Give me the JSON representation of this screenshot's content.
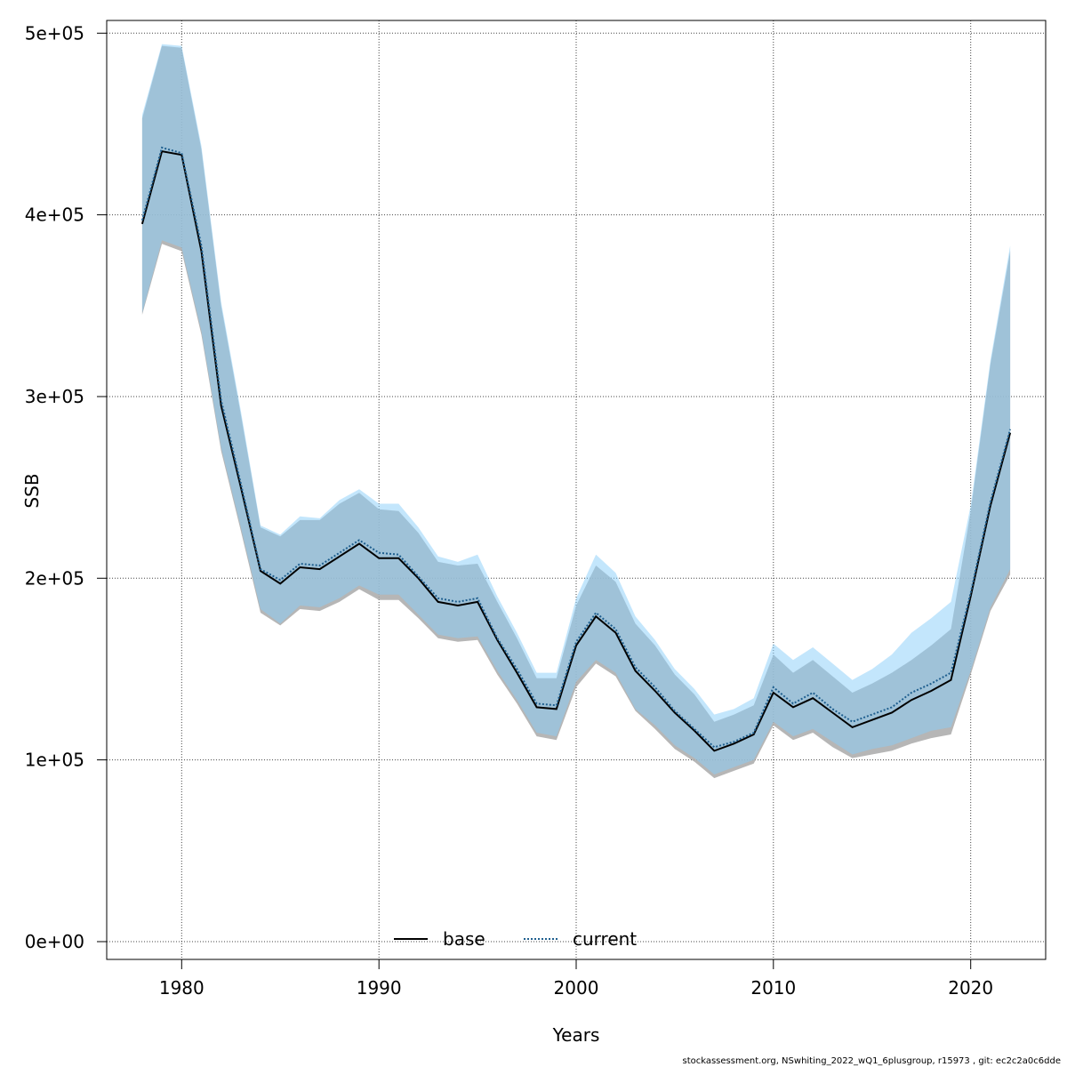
{
  "chart_data": {
    "type": "area",
    "xlabel": "Years",
    "ylabel": "SSB",
    "xlim": [
      1976.2,
      2023.8
    ],
    "ylim": [
      -9800,
      507000
    ],
    "x_ticks": [
      1980,
      1990,
      2000,
      2010,
      2020
    ],
    "x_tick_labels": [
      "1980",
      "1990",
      "2000",
      "2010",
      "2020"
    ],
    "y_ticks": [
      0,
      100000,
      200000,
      300000,
      400000,
      500000
    ],
    "y_tick_labels": [
      "0e+00",
      "1e+05",
      "2e+05",
      "3e+05",
      "4e+05",
      "5e+05"
    ],
    "grid": true,
    "legend_position": "bottom",
    "x": [
      1978,
      1979,
      1980,
      1981,
      1982,
      1983,
      1984,
      1985,
      1986,
      1987,
      1988,
      1989,
      1990,
      1991,
      1992,
      1993,
      1994,
      1995,
      1996,
      1997,
      1998,
      1999,
      2000,
      2001,
      2002,
      2003,
      2004,
      2005,
      2006,
      2007,
      2008,
      2009,
      2010,
      2011,
      2012,
      2013,
      2014,
      2015,
      2016,
      2017,
      2018,
      2019,
      2020,
      2021,
      2022
    ],
    "series": [
      {
        "name": "base",
        "line_style": "solid",
        "line_color": "#000000",
        "band_color": "#a9a9a9",
        "values": [
          395000,
          435000,
          433000,
          380000,
          295000,
          250000,
          204000,
          197000,
          206000,
          205000,
          212000,
          219000,
          211000,
          211000,
          200000,
          187000,
          185000,
          187000,
          166000,
          148000,
          129000,
          128000,
          163000,
          179000,
          170000,
          149000,
          138000,
          126000,
          116000,
          105000,
          109000,
          114000,
          137000,
          129000,
          134000,
          126000,
          118000,
          122000,
          126000,
          133000,
          138000,
          144000,
          190000,
          240000,
          280000
        ],
        "lower": [
          345000,
          384000,
          380000,
          334000,
          270000,
          226000,
          181000,
          174000,
          183000,
          182000,
          187000,
          194000,
          188000,
          188000,
          178000,
          167000,
          165000,
          166000,
          147000,
          131000,
          113000,
          111000,
          140000,
          153000,
          146000,
          127000,
          117000,
          106000,
          99000,
          90000,
          94000,
          98000,
          119000,
          111000,
          115000,
          107000,
          101000,
          103000,
          105000,
          109000,
          112000,
          114000,
          147000,
          182000,
          202000
        ],
        "upper": [
          453000,
          493000,
          492000,
          436000,
          350000,
          290000,
          228000,
          223000,
          232000,
          232000,
          241000,
          247000,
          238000,
          237000,
          225000,
          209000,
          207000,
          208000,
          187000,
          167000,
          145000,
          145000,
          185000,
          207000,
          198000,
          175000,
          163000,
          147000,
          136000,
          121000,
          125000,
          130000,
          158000,
          148000,
          155000,
          146000,
          137000,
          142000,
          148000,
          155000,
          163000,
          172000,
          237000,
          318000,
          380000
        ]
      },
      {
        "name": "current",
        "line_style": "dotted",
        "line_color": "#1f5f8f",
        "band_color": "#87cefa",
        "values": [
          397000,
          437000,
          434000,
          383000,
          298000,
          252000,
          205000,
          199000,
          208000,
          207000,
          214000,
          221000,
          214000,
          213000,
          201000,
          189000,
          187000,
          189000,
          167000,
          150000,
          131000,
          130000,
          165000,
          181000,
          172000,
          151000,
          140000,
          127000,
          117000,
          107000,
          110000,
          115000,
          140000,
          131000,
          137000,
          128000,
          121000,
          125000,
          129000,
          137000,
          142000,
          148000,
          192000,
          242000,
          282000
        ],
        "lower": [
          346000,
          386000,
          382000,
          336000,
          272000,
          228000,
          183000,
          175000,
          185000,
          184000,
          189000,
          196000,
          191000,
          191000,
          180000,
          169000,
          167000,
          168000,
          149000,
          133000,
          115000,
          113000,
          143000,
          155000,
          148000,
          128000,
          119000,
          108000,
          101000,
          92000,
          96000,
          100000,
          121000,
          113000,
          117000,
          110000,
          103000,
          106000,
          108000,
          112000,
          116000,
          118000,
          149000,
          184000,
          205000
        ],
        "upper": [
          455000,
          494000,
          493000,
          438000,
          352000,
          292000,
          229000,
          224000,
          234000,
          233000,
          243000,
          249000,
          241000,
          241000,
          228000,
          212000,
          209000,
          213000,
          190000,
          170000,
          148000,
          148000,
          189000,
          213000,
          203000,
          179000,
          166000,
          150000,
          139000,
          125000,
          128000,
          134000,
          164000,
          155000,
          162000,
          153000,
          144000,
          150000,
          158000,
          170000,
          178000,
          187000,
          240000,
          320000,
          383000
        ]
      }
    ]
  },
  "footer_text": "stockassessment.org, NSwhiting_2022_wQ1_6plusgroup, r15973 , git: ec2c2a0c6dde"
}
